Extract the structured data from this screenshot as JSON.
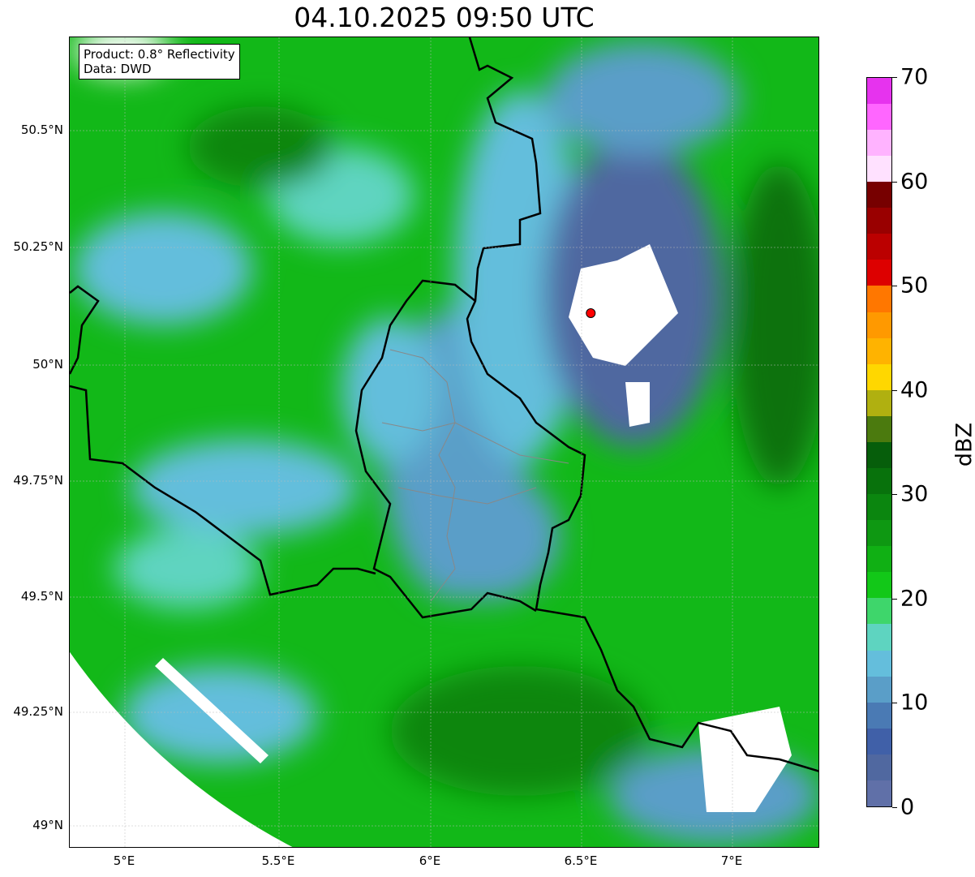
{
  "title": "04.10.2025 09:50 UTC",
  "info": {
    "product": "Product: 0.8° Reflectivity",
    "data": "Data: DWD"
  },
  "axes": {
    "lat_labels": [
      "50.5°N",
      "50.25°N",
      "50°N",
      "49.75°N",
      "49.5°N",
      "49.25°N",
      "49°N"
    ],
    "lat_values": [
      50.5,
      50.25,
      50.0,
      49.75,
      49.5,
      49.25,
      49.0
    ],
    "lon_labels": [
      "5°E",
      "5.5°E",
      "6°E",
      "6.5°E",
      "7°E"
    ],
    "lon_values": [
      5.0,
      5.5,
      6.0,
      6.5,
      7.0
    ],
    "lon_range": [
      4.818,
      7.298
    ],
    "lat_range": [
      48.95,
      50.7
    ]
  },
  "marker": {
    "lon": 6.54,
    "lat": 50.105,
    "color": "#ff0000"
  },
  "colorbar": {
    "label": "dBZ",
    "min": 0,
    "max": 70,
    "step": 2.5,
    "tick_labels": [
      "0",
      "10",
      "20",
      "30",
      "40",
      "50",
      "60",
      "70"
    ],
    "colors": [
      "#6070a8",
      "#5068a0",
      "#4060a8",
      "#4a7ab4",
      "#5a9ec8",
      "#64bedc",
      "#5ed4c0",
      "#3ed66b",
      "#12c818",
      "#10b014",
      "#0e9812",
      "#0b860f",
      "#08720c",
      "#065e0b",
      "#4b7a0e",
      "#b0b010",
      "#ffd700",
      "#ffb300",
      "#ff9900",
      "#ff7700",
      "#dd0000",
      "#bb0000",
      "#990000",
      "#770000",
      "#ffe1ff",
      "#ffb3ff",
      "#ff66ff",
      "#e633ee"
    ]
  }
}
